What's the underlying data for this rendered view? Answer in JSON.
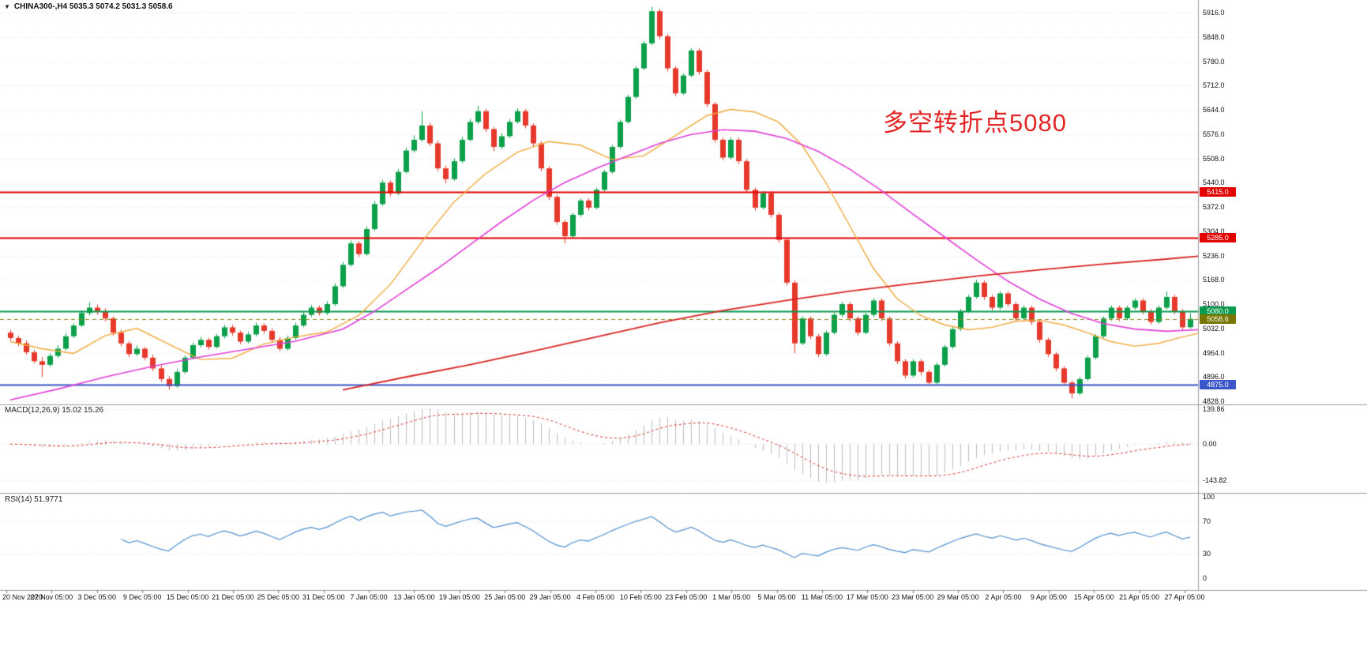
{
  "header": {
    "collapse_icon": "▼",
    "title": "CHINA300-,H4 5035.3 5074.2 5031.3 5058.6"
  },
  "annotation": {
    "text": "多空转折点5080",
    "color": "#e32525"
  },
  "colors": {
    "background": "#ffffff",
    "grid": "#e7e7e7",
    "separator": "#9a9a9a",
    "axis_text": "#111111",
    "up": "#0ca04a",
    "down": "#e6392c"
  },
  "main_panel": {
    "y_labels": [
      "5916.0",
      "5848.0",
      "5780.0",
      "5712.0",
      "5644.0",
      "5576.0",
      "5508.0",
      "5440.0",
      "5372.0",
      "5304.0",
      "5236.0",
      "5168.0",
      "5100.0",
      "5032.0",
      "4964.0",
      "4896.0",
      "4828.0"
    ]
  },
  "macd_panel": {
    "title": "MACD(12,26,9) 15.02 15.26",
    "y_labels": [
      "139.86",
      "0.00",
      "-143.82"
    ],
    "params": {
      "fast": 12,
      "slow": 26,
      "signal": 9
    },
    "histogram_color": "#bdbdbd",
    "signal_color": "#e03030"
  },
  "rsi_panel": {
    "title": "RSI(14) 51.9771",
    "period": 14,
    "y_labels": [
      "100",
      "70",
      "30",
      "0"
    ],
    "levels": [
      70,
      30
    ],
    "line_color": "#4e8fd0"
  },
  "x_axis": {
    "labels": [
      "20 Nov 2020",
      "27 Nov 05:00",
      "3 Dec 05:00",
      "9 Dec 05:00",
      "15 Dec 05:00",
      "21 Dec 05:00",
      "25 Dec 05:00",
      "31 Dec 05:00",
      "7 Jan 05:00",
      "13 Jan 05:00",
      "19 Jan 05:00",
      "25 Jan 05:00",
      "29 Jan 05:00",
      "4 Feb 05:00",
      "10 Feb 05:00",
      "23 Feb 05:00",
      "1 Mar 05:00",
      "5 Mar 05:00",
      "11 Mar 05:00",
      "17 Mar 05:00",
      "23 Mar 05:00",
      "29 Mar 05:00",
      "2 Apr 05:00",
      "9 Apr 05:00",
      "15 Apr 05:00",
      "21 Apr 05:00",
      "27 Apr 05:00"
    ]
  },
  "chart_data": {
    "type": "candlestick",
    "symbol": "CHINA300",
    "timeframe": "H4",
    "last_ohlc": {
      "open": 5035.3,
      "high": 5074.2,
      "low": 5031.3,
      "close": 5058.6
    },
    "y_axis": {
      "top": 5916.0,
      "bottom": 4828.0
    },
    "levels": [
      {
        "price": 5415.0,
        "label": "5415.0",
        "color": "#e20000",
        "width": 2,
        "badge": "#e20000"
      },
      {
        "price": 5285.0,
        "label": "5285.0",
        "color": "#e20000",
        "width": 2,
        "badge": "#e20000"
      },
      {
        "price": 5080.0,
        "label": "5080.0",
        "color": "#0a9a4e",
        "width": 2,
        "badge": "#0a9a4e"
      },
      {
        "price": 4875.0,
        "label": "4875.0",
        "color": "#3a56c8",
        "width": 2,
        "badge": "#3a56c8"
      }
    ],
    "current_price": {
      "value": 5058.6,
      "label": "5058.6",
      "color": "#8a8a20",
      "badge": "#767600",
      "style": "dashed"
    },
    "moving_averages": [
      {
        "name": "ma-fast",
        "color": "#f2a93b",
        "width": 1.4,
        "points": [
          [
            0,
            4995
          ],
          [
            4,
            4975
          ],
          [
            8,
            4962
          ],
          [
            12,
            5012
          ],
          [
            16,
            5032
          ],
          [
            20,
            4988
          ],
          [
            24,
            4945
          ],
          [
            28,
            4948
          ],
          [
            32,
            4988
          ],
          [
            36,
            5008
          ],
          [
            40,
            5022
          ],
          [
            44,
            5068
          ],
          [
            48,
            5155
          ],
          [
            52,
            5275
          ],
          [
            56,
            5385
          ],
          [
            60,
            5465
          ],
          [
            64,
            5525
          ],
          [
            68,
            5555
          ],
          [
            72,
            5545
          ],
          [
            76,
            5505
          ],
          [
            80,
            5515
          ],
          [
            84,
            5572
          ],
          [
            88,
            5628
          ],
          [
            91,
            5645
          ],
          [
            94,
            5638
          ],
          [
            97,
            5610
          ],
          [
            100,
            5545
          ],
          [
            103,
            5440
          ],
          [
            106,
            5320
          ],
          [
            109,
            5200
          ],
          [
            112,
            5115
          ],
          [
            115,
            5068
          ],
          [
            118,
            5042
          ],
          [
            121,
            5028
          ],
          [
            124,
            5035
          ],
          [
            127,
            5052
          ],
          [
            130,
            5055
          ],
          [
            133,
            5042
          ],
          [
            136,
            5020
          ],
          [
            139,
            4995
          ],
          [
            142,
            4982
          ],
          [
            145,
            4990
          ],
          [
            148,
            5008
          ],
          [
            150,
            5018
          ]
        ]
      },
      {
        "name": "ma-medium",
        "color": "#e13fd8",
        "width": 1.6,
        "points": [
          [
            0,
            4832
          ],
          [
            6,
            4862
          ],
          [
            12,
            4896
          ],
          [
            18,
            4926
          ],
          [
            24,
            4952
          ],
          [
            30,
            4974
          ],
          [
            36,
            4996
          ],
          [
            42,
            5030
          ],
          [
            46,
            5080
          ],
          [
            50,
            5140
          ],
          [
            54,
            5200
          ],
          [
            58,
            5265
          ],
          [
            62,
            5330
          ],
          [
            66,
            5390
          ],
          [
            70,
            5440
          ],
          [
            74,
            5480
          ],
          [
            78,
            5515
          ],
          [
            82,
            5550
          ],
          [
            86,
            5575
          ],
          [
            90,
            5588
          ],
          [
            94,
            5584
          ],
          [
            98,
            5564
          ],
          [
            102,
            5528
          ],
          [
            106,
            5478
          ],
          [
            110,
            5418
          ],
          [
            114,
            5352
          ],
          [
            118,
            5288
          ],
          [
            122,
            5224
          ],
          [
            126,
            5164
          ],
          [
            130,
            5114
          ],
          [
            134,
            5074
          ],
          [
            138,
            5046
          ],
          [
            142,
            5030
          ],
          [
            146,
            5024
          ],
          [
            150,
            5028
          ]
        ]
      },
      {
        "name": "ma-slow",
        "color": "#d92525",
        "width": 1.8,
        "points": [
          [
            42,
            4860
          ],
          [
            50,
            4896
          ],
          [
            58,
            4930
          ],
          [
            66,
            4968
          ],
          [
            74,
            5008
          ],
          [
            82,
            5048
          ],
          [
            90,
            5082
          ],
          [
            98,
            5110
          ],
          [
            106,
            5136
          ],
          [
            114,
            5158
          ],
          [
            122,
            5178
          ],
          [
            130,
            5196
          ],
          [
            138,
            5212
          ],
          [
            146,
            5226
          ],
          [
            150,
            5234
          ]
        ]
      }
    ],
    "candles": [
      [
        5020,
        5028,
        4998,
        5005
      ],
      [
        5005,
        5012,
        4982,
        4990
      ],
      [
        4990,
        4998,
        4958,
        4965
      ],
      [
        4965,
        4972,
        4934,
        4940
      ],
      [
        4940,
        4952,
        4896,
        4930
      ],
      [
        4930,
        4962,
        4925,
        4955
      ],
      [
        4955,
        4985,
        4950,
        4975
      ],
      [
        4975,
        5018,
        4970,
        5010
      ],
      [
        5010,
        5046,
        5005,
        5040
      ],
      [
        5040,
        5082,
        5036,
        5075
      ],
      [
        5075,
        5105,
        5068,
        5090
      ],
      [
        5090,
        5098,
        5070,
        5080
      ],
      [
        5080,
        5088,
        5052,
        5060
      ],
      [
        5060,
        5066,
        5012,
        5020
      ],
      [
        5020,
        5028,
        4982,
        4990
      ],
      [
        4990,
        4996,
        4952,
        4960
      ],
      [
        4960,
        4984,
        4955,
        4975
      ],
      [
        4975,
        4980,
        4942,
        4950
      ],
      [
        4950,
        4958,
        4912,
        4920
      ],
      [
        4920,
        4928,
        4882,
        4890
      ],
      [
        4890,
        4898,
        4860,
        4870
      ],
      [
        4870,
        4918,
        4866,
        4910
      ],
      [
        4910,
        4956,
        4905,
        4950
      ],
      [
        4950,
        4992,
        4946,
        4985
      ],
      [
        4985,
        5008,
        4978,
        5000
      ],
      [
        5000,
        5006,
        4972,
        4980
      ],
      [
        4980,
        5016,
        4976,
        5010
      ],
      [
        5010,
        5042,
        5004,
        5035
      ],
      [
        5035,
        5042,
        5012,
        5020
      ],
      [
        5020,
        5026,
        4988,
        4995
      ],
      [
        4995,
        5022,
        4990,
        5015
      ],
      [
        5015,
        5048,
        5010,
        5040
      ],
      [
        5040,
        5046,
        5018,
        5025
      ],
      [
        5025,
        5032,
        4992,
        5000
      ],
      [
        5000,
        5008,
        4968,
        4975
      ],
      [
        4975,
        5012,
        4970,
        5005
      ],
      [
        5005,
        5048,
        5000,
        5040
      ],
      [
        5040,
        5078,
        5035,
        5070
      ],
      [
        5070,
        5098,
        5064,
        5090
      ],
      [
        5090,
        5096,
        5068,
        5075
      ],
      [
        5075,
        5108,
        5070,
        5100
      ],
      [
        5100,
        5158,
        5095,
        5150
      ],
      [
        5150,
        5218,
        5145,
        5210
      ],
      [
        5210,
        5278,
        5205,
        5270
      ],
      [
        5270,
        5276,
        5232,
        5240
      ],
      [
        5240,
        5318,
        5236,
        5310
      ],
      [
        5310,
        5388,
        5305,
        5380
      ],
      [
        5380,
        5448,
        5375,
        5440
      ],
      [
        5440,
        5446,
        5402,
        5410
      ],
      [
        5410,
        5478,
        5405,
        5470
      ],
      [
        5470,
        5538,
        5465,
        5530
      ],
      [
        5530,
        5572,
        5524,
        5560
      ],
      [
        5560,
        5640,
        5555,
        5600
      ],
      [
        5600,
        5608,
        5542,
        5550
      ],
      [
        5550,
        5558,
        5472,
        5480
      ],
      [
        5480,
        5488,
        5438,
        5450
      ],
      [
        5450,
        5508,
        5445,
        5500
      ],
      [
        5500,
        5568,
        5495,
        5560
      ],
      [
        5560,
        5618,
        5555,
        5610
      ],
      [
        5610,
        5655,
        5604,
        5640
      ],
      [
        5640,
        5646,
        5582,
        5590
      ],
      [
        5590,
        5596,
        5528,
        5540
      ],
      [
        5540,
        5578,
        5534,
        5570
      ],
      [
        5570,
        5618,
        5565,
        5610
      ],
      [
        5610,
        5648,
        5605,
        5640
      ],
      [
        5640,
        5646,
        5592,
        5600
      ],
      [
        5600,
        5606,
        5542,
        5550
      ],
      [
        5550,
        5556,
        5472,
        5480
      ],
      [
        5480,
        5486,
        5392,
        5400
      ],
      [
        5400,
        5406,
        5322,
        5330
      ],
      [
        5330,
        5336,
        5270,
        5290
      ],
      [
        5290,
        5356,
        5285,
        5350
      ],
      [
        5350,
        5396,
        5344,
        5390
      ],
      [
        5390,
        5396,
        5362,
        5370
      ],
      [
        5370,
        5426,
        5365,
        5420
      ],
      [
        5420,
        5476,
        5415,
        5470
      ],
      [
        5470,
        5546,
        5465,
        5540
      ],
      [
        5540,
        5616,
        5535,
        5610
      ],
      [
        5610,
        5686,
        5605,
        5680
      ],
      [
        5680,
        5766,
        5675,
        5760
      ],
      [
        5760,
        5836,
        5755,
        5830
      ],
      [
        5830,
        5932,
        5825,
        5920
      ],
      [
        5920,
        5926,
        5842,
        5850
      ],
      [
        5850,
        5856,
        5752,
        5760
      ],
      [
        5760,
        5766,
        5682,
        5690
      ],
      [
        5690,
        5746,
        5685,
        5740
      ],
      [
        5740,
        5816,
        5735,
        5810
      ],
      [
        5810,
        5816,
        5742,
        5750
      ],
      [
        5750,
        5756,
        5652,
        5660
      ],
      [
        5660,
        5666,
        5552,
        5560
      ],
      [
        5560,
        5566,
        5502,
        5510
      ],
      [
        5510,
        5566,
        5505,
        5560
      ],
      [
        5560,
        5566,
        5492,
        5500
      ],
      [
        5500,
        5506,
        5412,
        5420
      ],
      [
        5420,
        5426,
        5362,
        5370
      ],
      [
        5370,
        5416,
        5365,
        5410
      ],
      [
        5410,
        5416,
        5342,
        5350
      ],
      [
        5350,
        5356,
        5272,
        5280
      ],
      [
        5280,
        5286,
        5152,
        5160
      ],
      [
        5160,
        5166,
        4962,
        4990
      ],
      [
        4990,
        5066,
        4985,
        5060
      ],
      [
        5060,
        5066,
        5002,
        5010
      ],
      [
        5010,
        5016,
        4952,
        4960
      ],
      [
        4960,
        5026,
        4955,
        5020
      ],
      [
        5020,
        5076,
        5015,
        5070
      ],
      [
        5070,
        5106,
        5064,
        5100
      ],
      [
        5100,
        5106,
        5052,
        5060
      ],
      [
        5060,
        5066,
        5012,
        5020
      ],
      [
        5020,
        5076,
        5015,
        5070
      ],
      [
        5070,
        5116,
        5064,
        5110
      ],
      [
        5110,
        5116,
        5052,
        5060
      ],
      [
        5060,
        5066,
        4982,
        4990
      ],
      [
        4990,
        4996,
        4932,
        4940
      ],
      [
        4940,
        4946,
        4892,
        4900
      ],
      [
        4900,
        4946,
        4895,
        4940
      ],
      [
        4940,
        4946,
        4902,
        4910
      ],
      [
        4910,
        4916,
        4876,
        4880
      ],
      [
        4880,
        4936,
        4875,
        4930
      ],
      [
        4930,
        4986,
        4925,
        4980
      ],
      [
        4980,
        5036,
        4975,
        5030
      ],
      [
        5030,
        5086,
        5025,
        5080
      ],
      [
        5080,
        5126,
        5075,
        5120
      ],
      [
        5120,
        5168,
        5115,
        5160
      ],
      [
        5160,
        5166,
        5112,
        5120
      ],
      [
        5120,
        5126,
        5082,
        5090
      ],
      [
        5090,
        5136,
        5085,
        5130
      ],
      [
        5130,
        5136,
        5092,
        5100
      ],
      [
        5100,
        5106,
        5052,
        5060
      ],
      [
        5060,
        5096,
        5055,
        5090
      ],
      [
        5090,
        5096,
        5042,
        5050
      ],
      [
        5050,
        5056,
        4992,
        5000
      ],
      [
        5000,
        5006,
        4952,
        4960
      ],
      [
        4960,
        4966,
        4912,
        4920
      ],
      [
        4920,
        4926,
        4872,
        4880
      ],
      [
        4880,
        4886,
        4836,
        4850
      ],
      [
        4850,
        4896,
        4845,
        4890
      ],
      [
        4890,
        4956,
        4885,
        4950
      ],
      [
        4950,
        5016,
        4945,
        5010
      ],
      [
        5010,
        5066,
        5005,
        5060
      ],
      [
        5060,
        5096,
        5054,
        5090
      ],
      [
        5090,
        5096,
        5052,
        5060
      ],
      [
        5060,
        5096,
        5055,
        5090
      ],
      [
        5090,
        5116,
        5084,
        5110
      ],
      [
        5110,
        5116,
        5072,
        5080
      ],
      [
        5080,
        5086,
        5042,
        5050
      ],
      [
        5050,
        5096,
        5045,
        5090
      ],
      [
        5090,
        5135,
        5085,
        5120
      ],
      [
        5120,
        5126,
        5072,
        5080
      ],
      [
        5080,
        5086,
        5028,
        5035
      ],
      [
        5035.3,
        5074.2,
        5031.3,
        5058.6
      ]
    ]
  }
}
